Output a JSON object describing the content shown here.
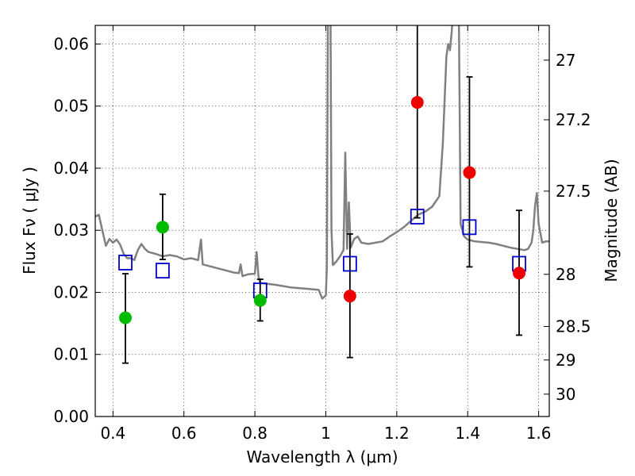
{
  "chart_data": {
    "type": "scatter",
    "title": "",
    "xlabel": "Wavelength  λ (μm)",
    "ylabel": "Flux  Fν  ( μJy )",
    "ylabel_right": "Magnitude (AB)",
    "xlim": [
      0.35,
      1.63
    ],
    "ylim": [
      0.0,
      0.063
    ],
    "grid": true,
    "x_ticks": [
      0.4,
      0.6,
      0.8,
      1.0,
      1.2,
      1.4,
      1.6
    ],
    "x_tick_labels": [
      "0.4",
      "0.6",
      "0.8",
      "1",
      "1.2",
      "1.4",
      "1.6"
    ],
    "y_ticks": [
      0.0,
      0.01,
      0.02,
      0.03,
      0.04,
      0.05,
      0.06
    ],
    "y_tick_labels": [
      "0.00",
      "0.01",
      "0.02",
      "0.03",
      "0.04",
      "0.05",
      "0.06"
    ],
    "right_ticks": [
      {
        "label": "27",
        "flux": 0.0574
      },
      {
        "label": "27.2",
        "flux": 0.0478
      },
      {
        "label": "27.5",
        "flux": 0.0363
      },
      {
        "label": "28",
        "flux": 0.0229
      },
      {
        "label": "28.5",
        "flux": 0.0145
      },
      {
        "label": "29",
        "flux": 0.0091
      },
      {
        "label": "30",
        "flux": 0.0036
      }
    ],
    "model_spectrum": {
      "color": "#808080",
      "x": [
        0.35,
        0.36,
        0.37,
        0.38,
        0.39,
        0.4,
        0.41,
        0.42,
        0.43,
        0.44,
        0.45,
        0.46,
        0.47,
        0.48,
        0.49,
        0.5,
        0.52,
        0.54,
        0.56,
        0.58,
        0.6,
        0.62,
        0.64,
        0.648,
        0.653,
        0.66,
        0.68,
        0.7,
        0.72,
        0.74,
        0.755,
        0.76,
        0.765,
        0.78,
        0.8,
        0.805,
        0.81,
        0.815,
        0.83,
        0.86,
        0.9,
        0.94,
        0.98,
        0.99,
        1.0,
        1.003,
        1.006,
        1.01,
        1.013,
        1.016,
        1.02,
        1.03,
        1.04,
        1.05,
        1.055,
        1.06,
        1.065,
        1.07,
        1.08,
        1.09,
        1.1,
        1.12,
        1.14,
        1.16,
        1.18,
        1.2,
        1.22,
        1.24,
        1.26,
        1.28,
        1.3,
        1.32,
        1.33,
        1.34,
        1.345,
        1.35,
        1.355,
        1.36,
        1.365,
        1.37,
        1.375,
        1.38,
        1.39,
        1.4,
        1.42,
        1.44,
        1.46,
        1.48,
        1.5,
        1.52,
        1.54,
        1.56,
        1.57,
        1.58,
        1.585,
        1.59,
        1.595,
        1.6,
        1.61,
        1.62,
        1.63
      ],
      "y": [
        0.0322,
        0.0325,
        0.03,
        0.0275,
        0.0286,
        0.028,
        0.0285,
        0.0277,
        0.0262,
        0.0255,
        0.0255,
        0.0252,
        0.0268,
        0.0278,
        0.027,
        0.0265,
        0.0262,
        0.0258,
        0.026,
        0.0258,
        0.0253,
        0.0255,
        0.0252,
        0.0285,
        0.0245,
        0.0244,
        0.0241,
        0.0238,
        0.0235,
        0.0232,
        0.0231,
        0.0245,
        0.0226,
        0.0229,
        0.023,
        0.0265,
        0.0226,
        0.0215,
        0.0214,
        0.0212,
        0.0208,
        0.0206,
        0.0204,
        0.019,
        0.0195,
        0.024,
        0.068,
        0.068,
        0.068,
        0.03,
        0.0244,
        0.025,
        0.0258,
        0.0268,
        0.0425,
        0.027,
        0.0345,
        0.0272,
        0.0286,
        0.029,
        0.028,
        0.0278,
        0.028,
        0.0282,
        0.029,
        0.0297,
        0.0305,
        0.0315,
        0.0325,
        0.033,
        0.0338,
        0.0355,
        0.044,
        0.058,
        0.06,
        0.059,
        0.062,
        0.066,
        0.068,
        0.068,
        0.066,
        0.031,
        0.029,
        0.0285,
        0.0282,
        0.0281,
        0.028,
        0.0278,
        0.0275,
        0.0272,
        0.027,
        0.0268,
        0.027,
        0.028,
        0.03,
        0.034,
        0.036,
        0.031,
        0.028,
        0.0282,
        0.0282
      ]
    },
    "model_points": {
      "color": "#0000cc",
      "marker": "square",
      "x": [
        0.435,
        0.54,
        0.815,
        1.068,
        1.258,
        1.405,
        1.545
      ],
      "y": [
        0.0248,
        0.0235,
        0.0203,
        0.0246,
        0.0322,
        0.0305,
        0.0246
      ]
    },
    "series": [
      {
        "color": "#00bb00",
        "x": [
          0.435,
          0.54,
          0.815
        ],
        "y": [
          0.0159,
          0.0305,
          0.0187
        ],
        "err_low": [
          0.0073,
          0.0052,
          0.0033
        ],
        "err_high": [
          0.0071,
          0.0053,
          0.0034
        ]
      },
      {
        "color": "#ee0000",
        "x": [
          1.068,
          1.258,
          1.405,
          1.545
        ],
        "y": [
          0.0194,
          0.0506,
          0.0393,
          0.0231
        ],
        "err_low": [
          0.0099,
          0.0186,
          0.0152,
          0.01
        ],
        "err_high": [
          0.01,
          0.0144,
          0.0154,
          0.0101
        ]
      }
    ]
  }
}
